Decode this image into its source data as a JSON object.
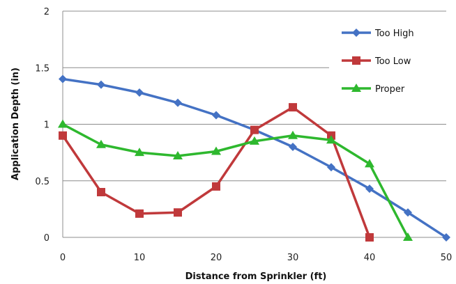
{
  "chart_data": {
    "type": "line",
    "title": "",
    "xlabel": "Distance from Sprinkler (ft)",
    "ylabel": "Application Depth (in)",
    "xlim": [
      0,
      50
    ],
    "ylim": [
      0,
      2
    ],
    "x_ticks": [
      "0",
      "10",
      "20",
      "30",
      "40",
      "50"
    ],
    "y_ticks": [
      "0",
      "0.5",
      "1",
      "1.5",
      "2"
    ],
    "grid": "horizontal",
    "legend_position": "top-right",
    "series": [
      {
        "name": "Too High",
        "color": "#4472C4",
        "marker": "diamond",
        "x": [
          0,
          5,
          10,
          15,
          20,
          25,
          30,
          35,
          40,
          45,
          50
        ],
        "y": [
          1.4,
          1.35,
          1.28,
          1.19,
          1.08,
          0.95,
          0.8,
          0.62,
          0.43,
          0.22,
          0.0
        ]
      },
      {
        "name": "Too Low",
        "color": "#C0393B",
        "marker": "square",
        "x": [
          0,
          5,
          10,
          15,
          20,
          25,
          30,
          35,
          40
        ],
        "y": [
          0.9,
          0.4,
          0.21,
          0.22,
          0.45,
          0.95,
          1.15,
          0.9,
          0.0
        ]
      },
      {
        "name": "Proper",
        "color": "#2EB82E",
        "marker": "triangle",
        "x": [
          0,
          5,
          10,
          15,
          20,
          25,
          30,
          35,
          40,
          45
        ],
        "y": [
          1.0,
          0.82,
          0.75,
          0.72,
          0.76,
          0.85,
          0.9,
          0.86,
          0.65,
          0.0
        ]
      }
    ]
  }
}
